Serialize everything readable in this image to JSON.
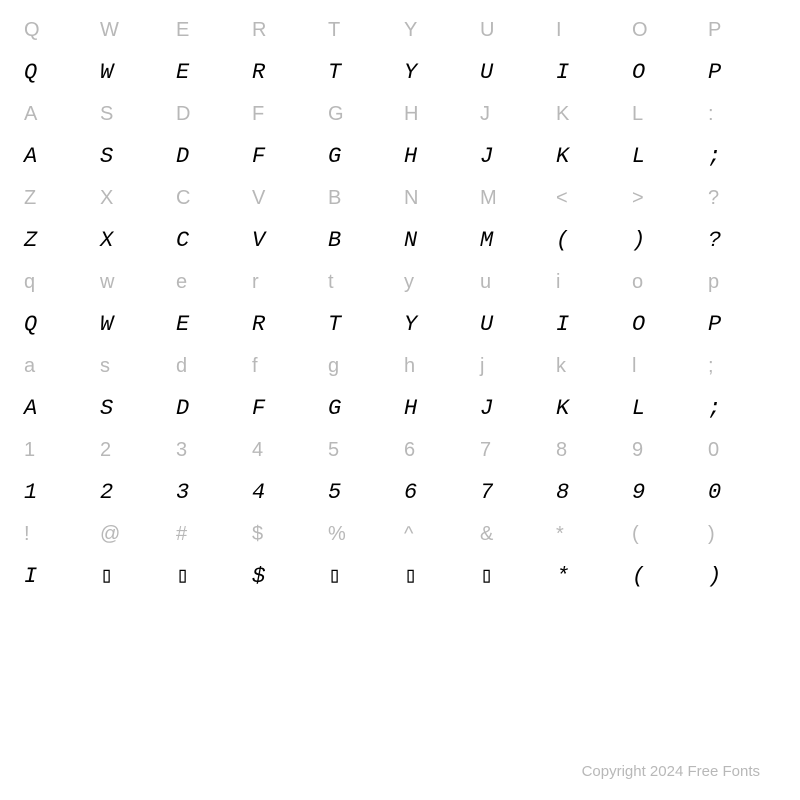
{
  "ref_color": "#b8b8b8",
  "display_color": "#000000",
  "background_color": "#ffffff",
  "ref_fontsize": 20,
  "display_fontsize": 22,
  "rows": [
    {
      "refs": [
        "Q",
        "W",
        "E",
        "R",
        "T",
        "Y",
        "U",
        "I",
        "O",
        "P"
      ],
      "disp": [
        "Q",
        "W",
        "E",
        "R",
        "T",
        "Y",
        "U",
        "I",
        "O",
        "P"
      ]
    },
    {
      "refs": [
        "A",
        "S",
        "D",
        "F",
        "G",
        "H",
        "J",
        "K",
        "L",
        ":"
      ],
      "disp": [
        "A",
        "S",
        "D",
        "F",
        "G",
        "H",
        "J",
        "K",
        "L",
        ";"
      ]
    },
    {
      "refs": [
        "Z",
        "X",
        "C",
        "V",
        "B",
        "N",
        "M",
        "<",
        ">",
        "?"
      ],
      "disp": [
        "Z",
        "X",
        "C",
        "V",
        "B",
        "N",
        "M",
        "(",
        ")",
        "?"
      ]
    },
    {
      "refs": [
        "q",
        "w",
        "e",
        "r",
        "t",
        "y",
        "u",
        "i",
        "o",
        "p"
      ],
      "disp": [
        "Q",
        "W",
        "E",
        "R",
        "T",
        "Y",
        "U",
        "I",
        "O",
        "P"
      ]
    },
    {
      "refs": [
        "a",
        "s",
        "d",
        "f",
        "g",
        "h",
        "j",
        "k",
        "l",
        ";"
      ],
      "disp": [
        "A",
        "S",
        "D",
        "F",
        "G",
        "H",
        "J",
        "K",
        "L",
        ";"
      ]
    },
    {
      "refs": [
        "1",
        "2",
        "3",
        "4",
        "5",
        "6",
        "7",
        "8",
        "9",
        "0"
      ],
      "disp": [
        "1",
        "2",
        "3",
        "4",
        "5",
        "6",
        "7",
        "8",
        "9",
        "0"
      ]
    },
    {
      "refs": [
        "!",
        "@",
        "#",
        "$",
        "%",
        "^",
        "&",
        "*",
        "(",
        ")"
      ],
      "disp": [
        "I",
        "▯",
        "▯",
        "$",
        "▯",
        "▯",
        "▯",
        "*",
        "(",
        ")"
      ]
    }
  ],
  "footer": "Copyright 2024 Free Fonts"
}
